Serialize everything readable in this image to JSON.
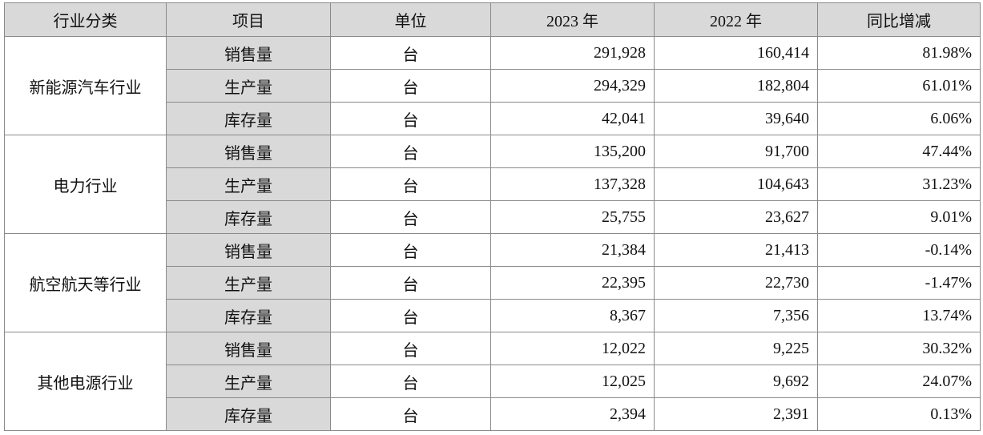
{
  "headers": [
    "行业分类",
    "项目",
    "单位",
    "2023 年",
    "2022 年",
    "同比增减"
  ],
  "groups": [
    {
      "category": "新能源汽车行业",
      "rows": [
        {
          "item": "销售量",
          "unit": "台",
          "y2023": "291,928",
          "y2022": "160,414",
          "yoy": "81.98%"
        },
        {
          "item": "生产量",
          "unit": "台",
          "y2023": "294,329",
          "y2022": "182,804",
          "yoy": "61.01%"
        },
        {
          "item": "库存量",
          "unit": "台",
          "y2023": "42,041",
          "y2022": "39,640",
          "yoy": "6.06%"
        }
      ]
    },
    {
      "category": "电力行业",
      "rows": [
        {
          "item": "销售量",
          "unit": "台",
          "y2023": "135,200",
          "y2022": "91,700",
          "yoy": "47.44%"
        },
        {
          "item": "生产量",
          "unit": "台",
          "y2023": "137,328",
          "y2022": "104,643",
          "yoy": "31.23%"
        },
        {
          "item": "库存量",
          "unit": "台",
          "y2023": "25,755",
          "y2022": "23,627",
          "yoy": "9.01%"
        }
      ]
    },
    {
      "category": "航空航天等行业",
      "rows": [
        {
          "item": "销售量",
          "unit": "台",
          "y2023": "21,384",
          "y2022": "21,413",
          "yoy": "-0.14%"
        },
        {
          "item": "生产量",
          "unit": "台",
          "y2023": "22,395",
          "y2022": "22,730",
          "yoy": "-1.47%"
        },
        {
          "item": "库存量",
          "unit": "台",
          "y2023": "8,367",
          "y2022": "7,356",
          "yoy": "13.74%"
        }
      ]
    },
    {
      "category": "其他电源行业",
      "rows": [
        {
          "item": "销售量",
          "unit": "台",
          "y2023": "12,022",
          "y2022": "9,225",
          "yoy": "30.32%"
        },
        {
          "item": "生产量",
          "unit": "台",
          "y2023": "12,025",
          "y2022": "9,692",
          "yoy": "24.07%"
        },
        {
          "item": "库存量",
          "unit": "台",
          "y2023": "2,394",
          "y2022": "2,391",
          "yoy": "0.13%"
        }
      ]
    }
  ],
  "colors": {
    "header_bg": "#d9d9d9",
    "item_bg": "#d9d9d9",
    "border": "#8a8a8a"
  }
}
